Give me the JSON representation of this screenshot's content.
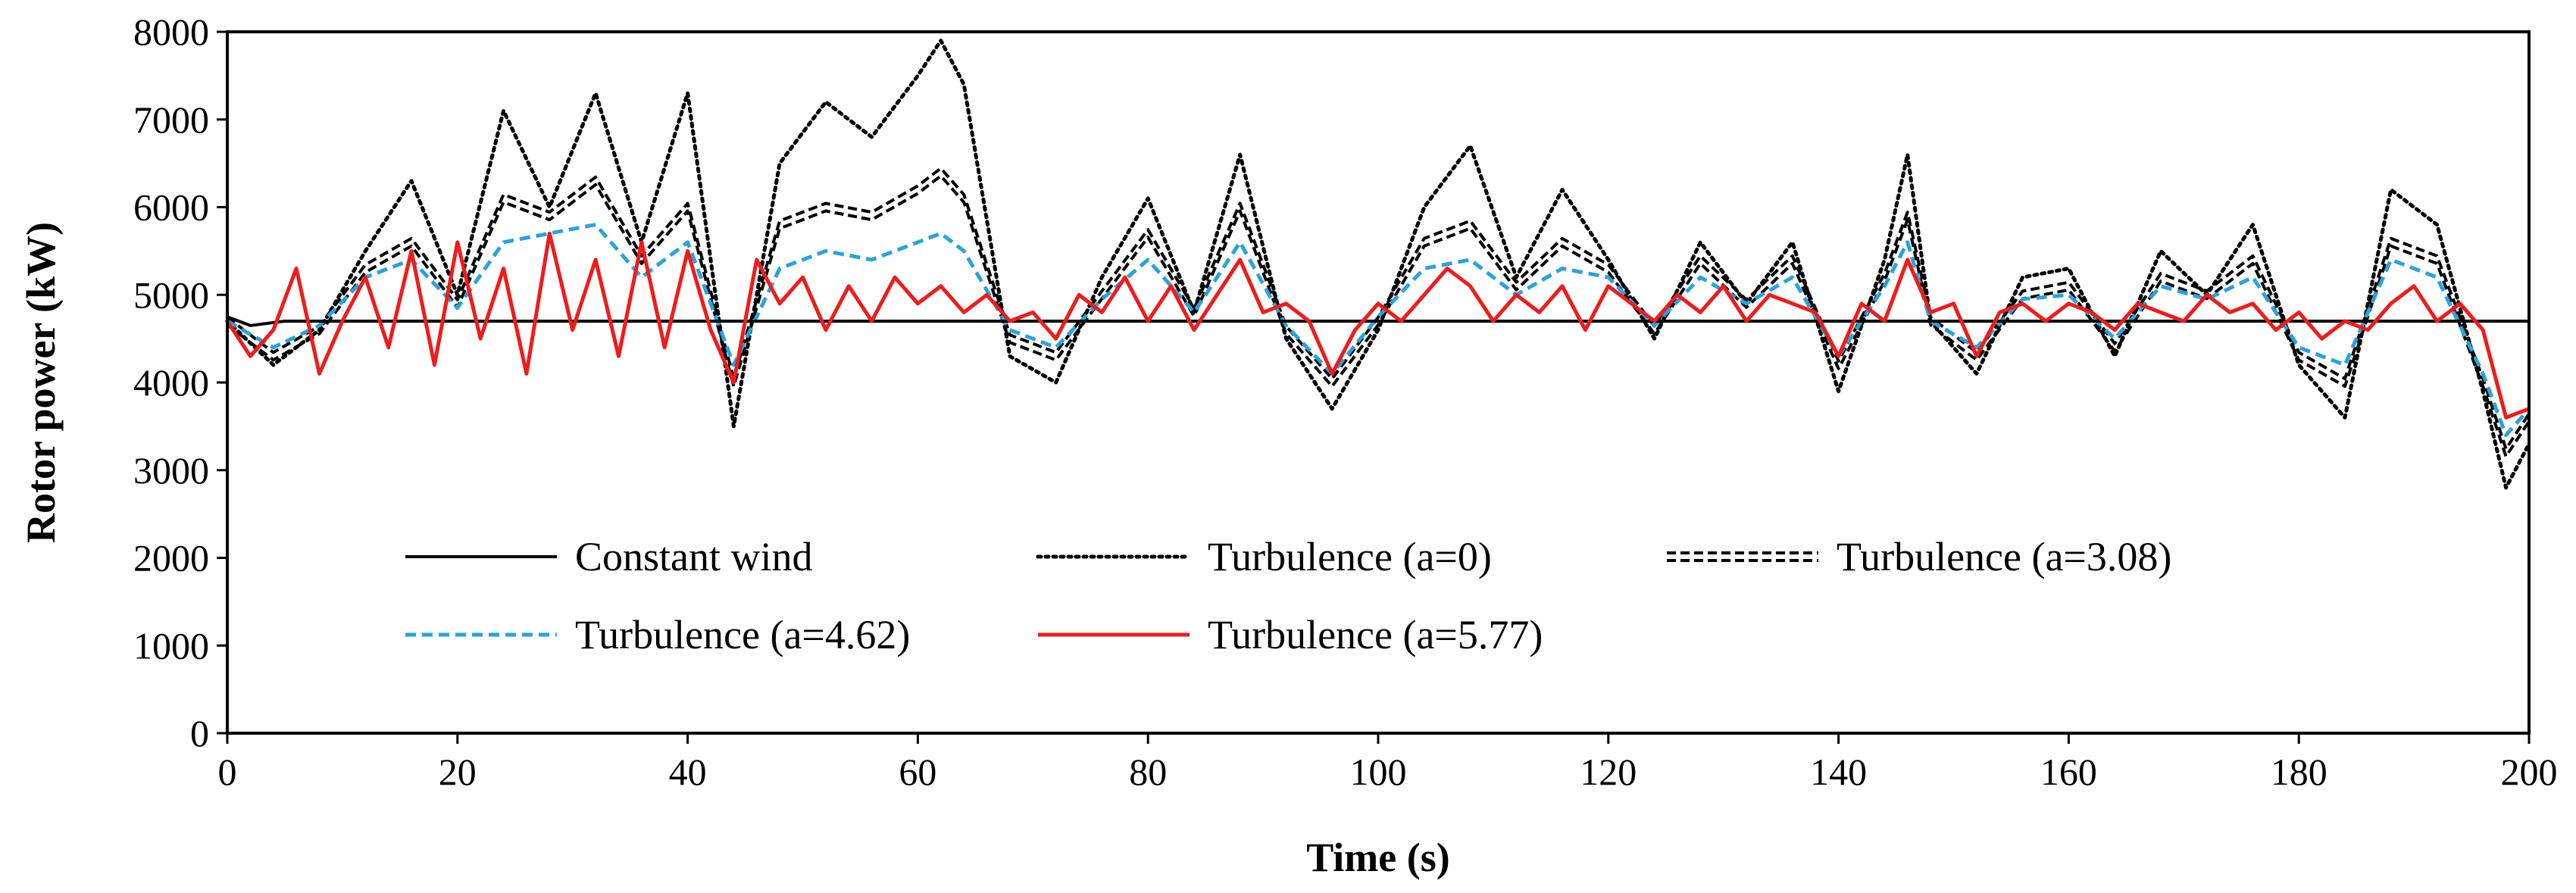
{
  "chart_data": {
    "type": "line",
    "title": "",
    "xlabel": "Time (s)",
    "ylabel": "Rotor power (kW)",
    "xlim": [
      0,
      200
    ],
    "ylim": [
      0,
      8000
    ],
    "x_ticks": [
      0,
      20,
      40,
      60,
      80,
      100,
      120,
      140,
      160,
      180,
      200
    ],
    "y_ticks": [
      0,
      1000,
      2000,
      3000,
      4000,
      5000,
      6000,
      7000,
      8000
    ],
    "grid": false,
    "legend_position": "bottom-inside",
    "sample_step_s": 4,
    "series": [
      {
        "name": "Constant wind",
        "style": "solid",
        "color": "#000000",
        "x": [
          0,
          2,
          5,
          200
        ],
        "y": [
          4750,
          4650,
          4700,
          4700
        ]
      },
      {
        "name": "Turbulence (a=0)",
        "style": "dotted",
        "color": "#000000",
        "x": [
          0,
          4,
          8,
          12,
          16,
          20,
          24,
          28,
          32,
          36,
          40,
          44,
          48,
          52,
          56,
          60,
          62,
          64,
          68,
          72,
          76,
          80,
          84,
          88,
          92,
          96,
          100,
          104,
          108,
          112,
          116,
          120,
          124,
          128,
          132,
          136,
          140,
          144,
          146,
          148,
          152,
          156,
          160,
          164,
          168,
          172,
          176,
          180,
          184,
          188,
          192,
          196,
          198,
          200
        ],
        "y": [
          4700,
          4200,
          4600,
          5500,
          6300,
          5000,
          7100,
          6000,
          7300,
          5600,
          7300,
          3500,
          6500,
          7200,
          6800,
          7500,
          7900,
          7400,
          4300,
          4000,
          5200,
          6100,
          4800,
          6600,
          4500,
          3700,
          4600,
          6000,
          6700,
          5200,
          6200,
          5400,
          4500,
          5600,
          4900,
          5600,
          3900,
          5400,
          6600,
          4700,
          4100,
          5200,
          5300,
          4300,
          5500,
          5000,
          5800,
          4200,
          3600,
          6200,
          5800,
          3900,
          2800,
          3300
        ]
      },
      {
        "name": "Turbulence (a=3.08)",
        "style": "double-dashed",
        "color": "#000000",
        "x": [
          0,
          4,
          8,
          12,
          16,
          20,
          24,
          28,
          32,
          36,
          40,
          44,
          48,
          52,
          56,
          60,
          62,
          64,
          68,
          72,
          76,
          80,
          84,
          88,
          92,
          96,
          100,
          104,
          108,
          112,
          116,
          120,
          124,
          128,
          132,
          136,
          140,
          144,
          146,
          148,
          152,
          156,
          160,
          164,
          168,
          172,
          176,
          180,
          184,
          188,
          192,
          196,
          198,
          200
        ],
        "y": [
          4700,
          4300,
          4600,
          5300,
          5600,
          4900,
          6100,
          5900,
          6300,
          5400,
          6000,
          4000,
          5800,
          6000,
          5900,
          6200,
          6400,
          6100,
          4500,
          4300,
          5000,
          5700,
          4800,
          6000,
          4600,
          4000,
          4700,
          5600,
          5800,
          5100,
          5600,
          5300,
          4600,
          5400,
          4900,
          5400,
          4200,
          5200,
          5900,
          4700,
          4300,
          5000,
          5100,
          4400,
          5200,
          5000,
          5400,
          4300,
          4000,
          5600,
          5400,
          4000,
          3200,
          3600
        ]
      },
      {
        "name": "Turbulence (a=4.62)",
        "style": "dashed",
        "color": "#29A3DD",
        "x": [
          0,
          4,
          8,
          12,
          16,
          20,
          24,
          28,
          32,
          36,
          40,
          44,
          48,
          52,
          56,
          60,
          62,
          64,
          68,
          72,
          76,
          80,
          84,
          88,
          92,
          96,
          100,
          104,
          108,
          112,
          116,
          120,
          124,
          128,
          132,
          136,
          140,
          144,
          146,
          148,
          152,
          156,
          160,
          164,
          168,
          172,
          176,
          180,
          184,
          188,
          192,
          196,
          198,
          200
        ],
        "y": [
          4700,
          4400,
          4650,
          5200,
          5400,
          4850,
          5600,
          5700,
          5800,
          5200,
          5600,
          4200,
          5300,
          5500,
          5400,
          5600,
          5700,
          5500,
          4600,
          4400,
          4950,
          5400,
          4800,
          5600,
          4650,
          4100,
          4750,
          5300,
          5400,
          5000,
          5300,
          5200,
          4650,
          5200,
          4900,
          5200,
          4300,
          5100,
          5600,
          4700,
          4400,
          4950,
          5000,
          4500,
          5100,
          4950,
          5200,
          4400,
          4200,
          5400,
          5200,
          4100,
          3400,
          3700
        ]
      },
      {
        "name": "Turbulence (a=5.77)",
        "style": "solid",
        "color": "#EE1C1C",
        "x": [
          0,
          2,
          4,
          6,
          8,
          10,
          12,
          14,
          16,
          18,
          20,
          22,
          24,
          26,
          28,
          30,
          32,
          34,
          36,
          38,
          40,
          42,
          44,
          46,
          48,
          50,
          52,
          54,
          56,
          58,
          60,
          62,
          64,
          66,
          68,
          70,
          72,
          74,
          76,
          78,
          80,
          82,
          84,
          86,
          88,
          90,
          92,
          94,
          96,
          98,
          100,
          102,
          104,
          106,
          108,
          110,
          112,
          114,
          116,
          118,
          120,
          122,
          124,
          126,
          128,
          130,
          132,
          134,
          136,
          138,
          140,
          142,
          144,
          146,
          148,
          150,
          152,
          154,
          156,
          158,
          160,
          162,
          164,
          166,
          168,
          170,
          172,
          174,
          176,
          178,
          180,
          182,
          184,
          186,
          188,
          190,
          192,
          194,
          196,
          198,
          200
        ],
        "y": [
          4700,
          4300,
          4600,
          5300,
          4100,
          4700,
          5200,
          4400,
          5500,
          4200,
          5600,
          4500,
          5300,
          4100,
          5700,
          4600,
          5400,
          4300,
          5600,
          4400,
          5500,
          4600,
          4000,
          5400,
          4900,
          5200,
          4600,
          5100,
          4700,
          5200,
          4900,
          5100,
          4800,
          5000,
          4700,
          4800,
          4500,
          5000,
          4800,
          5200,
          4700,
          5100,
          4600,
          5000,
          5400,
          4800,
          4900,
          4700,
          4100,
          4600,
          4900,
          4700,
          5000,
          5300,
          5100,
          4700,
          5000,
          4800,
          5100,
          4600,
          5100,
          4900,
          4700,
          5000,
          4800,
          5100,
          4700,
          5000,
          4900,
          4800,
          4300,
          4900,
          4700,
          5400,
          4800,
          4900,
          4300,
          4800,
          4900,
          4700,
          4900,
          4800,
          4600,
          4900,
          4800,
          4700,
          5000,
          4800,
          4900,
          4600,
          4800,
          4500,
          4700,
          4600,
          4900,
          5100,
          4700,
          4900,
          4600,
          3600,
          3700
        ]
      }
    ]
  }
}
